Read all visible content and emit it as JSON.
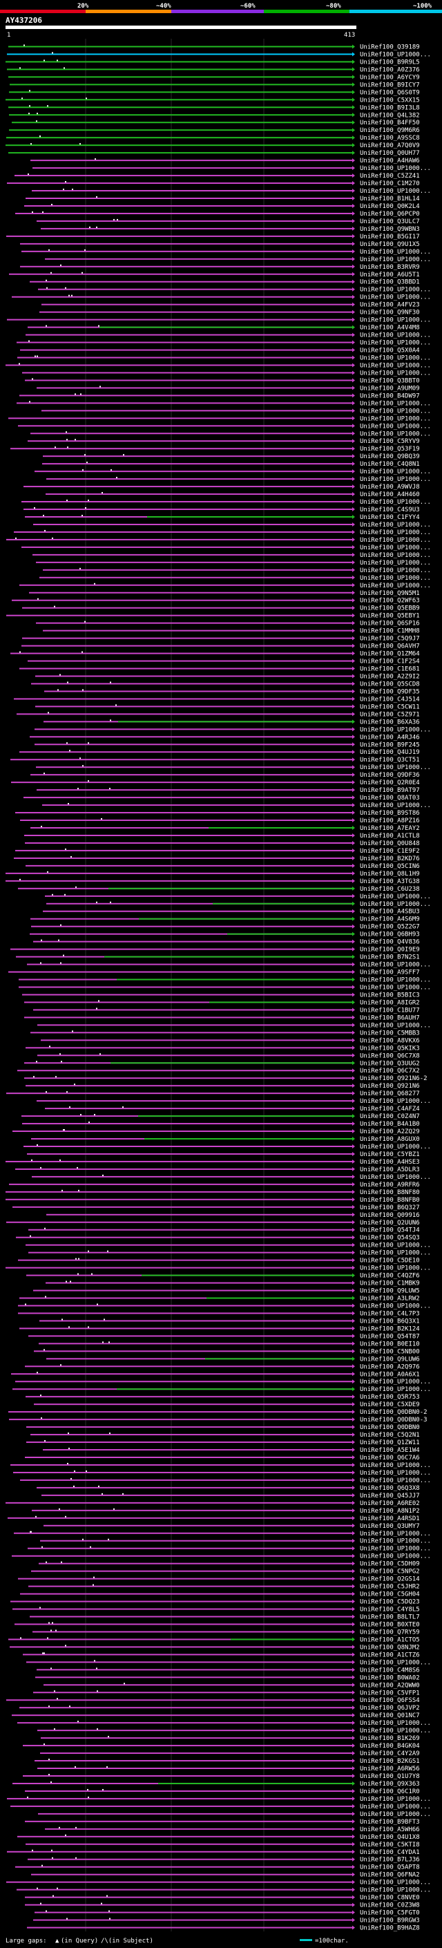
{
  "query_id": "AY437206",
  "query_start": "1",
  "query_end": "413",
  "identity_scale": {
    "labels": [
      "20%",
      "~40%",
      "~60%",
      "~80%",
      "~100%"
    ],
    "colors": [
      "#e0001a",
      "#ff8c00",
      "#8a2be2",
      "#00b000",
      "#00c8e8"
    ]
  },
  "colors": {
    "magenta": "#cc44cc",
    "green": "#22bb22",
    "cyan": "#00ccff",
    "guide": "#2a2a2a"
  },
  "legend": {
    "gaps_label": "Large gaps:",
    "query_gap_label": "(in Query)",
    "subject_gap_label": "/\\(in Subject)",
    "scale_label": "=100char."
  },
  "hits": [
    "UniRef100_Q39189",
    "UniRef100_UP1000...",
    "UniRef100_B9R9L5",
    "UniRef100_A0Z376",
    "UniRef100_A6YCY9",
    "UniRef100_B9ICY7",
    "UniRef100_Q6S0T9",
    "UniRef100_C5XX15",
    "UniRef100_B9I3L8",
    "UniRef100_Q4L382",
    "UniRef100_B4FF50",
    "UniRef100_Q9M6R6",
    "UniRef100_A9SSC8",
    "UniRef100_A7Q0V9",
    "UniRef100_Q0UH77",
    "UniRef100_A4HAW6",
    "UniRef100_UP1000...",
    "UniRef100_C5ZZ41",
    "UniRef100_C1M270",
    "UniRef100_UP1000...",
    "UniRef100_B1HL14",
    "UniRef100_Q0K2L4",
    "UniRef100_Q6PCP0",
    "UniRef100_Q3ULC7",
    "UniRef100_Q9WBN3",
    "UniRef100_B5GI17",
    "UniRef100_Q9U1X5",
    "UniRef100_UP1000...",
    "UniRef100_UP1000...",
    "UniRef100_B3RVR9",
    "UniRef100_A6U5T1",
    "UniRef100_Q3BBD1",
    "UniRef100_UP1000...",
    "UniRef100_UP1000...",
    "UniRef100_A4FV23",
    "UniRef100_Q9NF30",
    "UniRef100_UP1000...",
    "UniRef100_A4V4M8",
    "UniRef100_UP1000...",
    "UniRef100_UP1000...",
    "UniRef100_Q5X0A4",
    "UniRef100_UP1000...",
    "UniRef100_UP1000...",
    "UniRef100_UP1000...",
    "UniRef100_Q3BBT0",
    "UniRef100_A9UM09",
    "UniRef100_B4DW97",
    "UniRef100_UP1000...",
    "UniRef100_UP1000...",
    "UniRef100_UP1000...",
    "UniRef100_UP1000...",
    "UniRef100_UP1000...",
    "UniRef100_C5RYV9",
    "UniRef100_Q53F19",
    "UniRef100_Q9BQ39",
    "UniRef100_C4Q8N1",
    "UniRef100_UP1000...",
    "UniRef100_UP1000...",
    "UniRef100_A9WVJ8",
    "UniRef100_A4H460",
    "UniRef100_UP1000...",
    "UniRef100_C4S9U3",
    "UniRef100_C1FYY4",
    "UniRef100_UP1000...",
    "UniRef100_UP1000...",
    "UniRef100_UP1000...",
    "UniRef100_UP1000...",
    "UniRef100_UP1000...",
    "UniRef100_UP1000...",
    "UniRef100_UP1000...",
    "UniRef100_UP1000...",
    "UniRef100_UP1000...",
    "UniRef100_Q9N5M1",
    "UniRef100_Q2WF63",
    "UniRef100_Q5EBB9",
    "UniRef100_Q5EBY1",
    "UniRef100_Q6SP16",
    "UniRef100_C1MMH8",
    "UniRef100_C5Q9J7",
    "UniRef100_Q6AVH7",
    "UniRef100_Q1ZM64",
    "UniRef100_C1F2S4",
    "UniRef100_C1E681",
    "UniRef100_A2Z9I2",
    "UniRef100_Q5SCD8",
    "UniRef100_Q9DF35",
    "UniRef100_C4J514",
    "UniRef100_C5CW11",
    "UniRef100_C5Z971",
    "UniRef100_B6XA36",
    "UniRef100_UP1000...",
    "UniRef100_A4RJ46",
    "UniRef100_B9F245",
    "UniRef100_Q4UJ19",
    "UniRef100_Q3CT51",
    "UniRef100_UP1000...",
    "UniRef100_Q9DF36",
    "UniRef100_Q2R0E4",
    "UniRef100_B9AT97",
    "UniRef100_Q8AT03",
    "UniRef100_UP1000...",
    "UniRef100_B9ST86",
    "UniRef100_A8PZ16",
    "UniRef100_A7EAY2",
    "UniRef100_A1CTL8",
    "UniRef100_Q0U848",
    "UniRef100_C1E9F2",
    "UniRef100_B2KD76",
    "UniRef100_Q5CIN6",
    "UniRef100_Q8L1H9",
    "UniRef100_A3TG38",
    "UniRef100_C6U238",
    "UniRef100_UP1000...",
    "UniRef100_UP1000...",
    "UniRef100_A4SBU3",
    "UniRef100_A4S6M9",
    "UniRef100_Q5Z2G7",
    "UniRef100_Q6BH93",
    "UniRef100_Q4V836",
    "UniRef100_Q0I9E9",
    "UniRef100_B7N2S1",
    "UniRef100_UP1000...",
    "UniRef100_A9SFF7",
    "UniRef100_UP1000...",
    "UniRef100_UP1000...",
    "UniRef100_B5BIC3",
    "UniRef100_A8IGR2",
    "UniRef100_C1BU77",
    "UniRef100_B6AUH7",
    "UniRef100_UP1000...",
    "UniRef100_C5MBB3",
    "UniRef100_A8VKX6",
    "UniRef100_Q5KIK3",
    "UniRef100_Q6C7X8",
    "UniRef100_Q3UUG2",
    "UniRef100_Q6C7X2",
    "UniRef100_Q921N6-2",
    "UniRef100_Q921N6",
    "UniRef100_Q68277",
    "UniRef100_UP1000...",
    "UniRef100_C4AFZ4",
    "UniRef100_C0Z4N7",
    "UniRef100_B4A1B0",
    "UniRef100_A2ZQ29",
    "UniRef100_A8GUX0",
    "UniRef100_UP1000...",
    "UniRef100_C5YBZ1",
    "UniRef100_A4HSE3",
    "UniRef100_A5DLR3",
    "UniRef100_UP1000...",
    "UniRef100_A9RFR6",
    "UniRef100_B8NF80",
    "UniRef100_B8NFB0",
    "UniRef100_B6Q327",
    "UniRef100_Q09916",
    "UniRef100_Q2UUN6",
    "UniRef100_Q54TJ4",
    "UniRef100_Q54SQ3",
    "UniRef100_UP1000...",
    "UniRef100_UP1000...",
    "UniRef100_C5DE10",
    "UniRef100_UP1000...",
    "UniRef100_C4QZF6",
    "UniRef100_C1MBK9",
    "UniRef100_Q9LUW5",
    "UniRef100_A3LRW2",
    "UniRef100_UP1000...",
    "UniRef100_C4L7P3",
    "UniRef100_B6Q3X1",
    "UniRef100_B2K124",
    "UniRef100_Q54T87",
    "UniRef100_B0EI10",
    "UniRef100_C5NB00",
    "UniRef100_Q9LUW6",
    "UniRef100_A2Q976",
    "UniRef100_A0A6X1",
    "UniRef100_UP1000...",
    "UniRef100_UP1000...",
    "UniRef100_Q5R753",
    "UniRef100_C5XDE9",
    "UniRef100_Q0DBN0-2",
    "UniRef100_Q0DBN0-3",
    "UniRef100_Q0DBN0",
    "UniRef100_C5Q2N1",
    "UniRef100_Q1ZW11",
    "UniRef100_A5E1W4",
    "UniRef100_Q6C7A6",
    "UniRef100_UP1000...",
    "UniRef100_UP1000...",
    "UniRef100_UP1000...",
    "UniRef100_Q6Q3X8",
    "UniRef100_Q45JJ7",
    "UniRef100_A6RE02",
    "UniRef100_A8N1P2",
    "UniRef100_A4RSD1",
    "UniRef100_Q3UMY7",
    "UniRef100_UP1000...",
    "UniRef100_UP1000...",
    "UniRef100_UP1000...",
    "UniRef100_UP1000...",
    "UniRef100_C5DH09",
    "UniRef100_C5NPG2",
    "UniRef100_Q2GS14",
    "UniRef100_C5JHR2",
    "UniRef100_C5GH04",
    "UniRef100_C5DQ23",
    "UniRef100_C4Y8L5",
    "UniRef100_B8LTL7",
    "UniRef100_B0XTE0",
    "UniRef100_Q7RY59",
    "UniRef100_A1CTO5",
    "UniRef100_Q8NJM2",
    "UniRef100_A1CTZ6",
    "UniRef100_UP1000...",
    "UniRef100_C4M8S6",
    "UniRef100_B0WA02",
    "UniRef100_A2QWW0",
    "UniRef100_C5VFP1",
    "UniRef100_Q6FSS4",
    "UniRef100_Q6JVP2",
    "UniRef100_Q01NC7",
    "UniRef100_UP1000...",
    "UniRef100_UP1000...",
    "UniRef100_B1K269",
    "UniRef100_B4GK04",
    "UniRef100_C4Y2A9",
    "UniRef100_B2KGS1",
    "UniRef100_A6RW56",
    "UniRef100_Q1U7Y8",
    "UniRef100_Q9X363",
    "UniRef100_Q6C1R0",
    "UniRef100_UP1000...",
    "UniRef100_UP1000...",
    "UniRef100_UP1000...",
    "UniRef100_B9BFT3",
    "UniRef100_A5WH66",
    "UniRef100_Q4U1X8",
    "UniRef100_C5KTI8",
    "UniRef100_C4YDA1",
    "UniRef100_B7LJ36",
    "UniRef100_Q5APT8",
    "UniRef100_Q6FNA2",
    "UniRef100_UP1000...",
    "UniRef100_UP1000...",
    "UniRef100_C8NVE0",
    "UniRef100_C0Z3W8",
    "UniRef100_C5FGT0",
    "UniRef100_B9RGW3",
    "UniRef100_B9HAZ8"
  ]
}
